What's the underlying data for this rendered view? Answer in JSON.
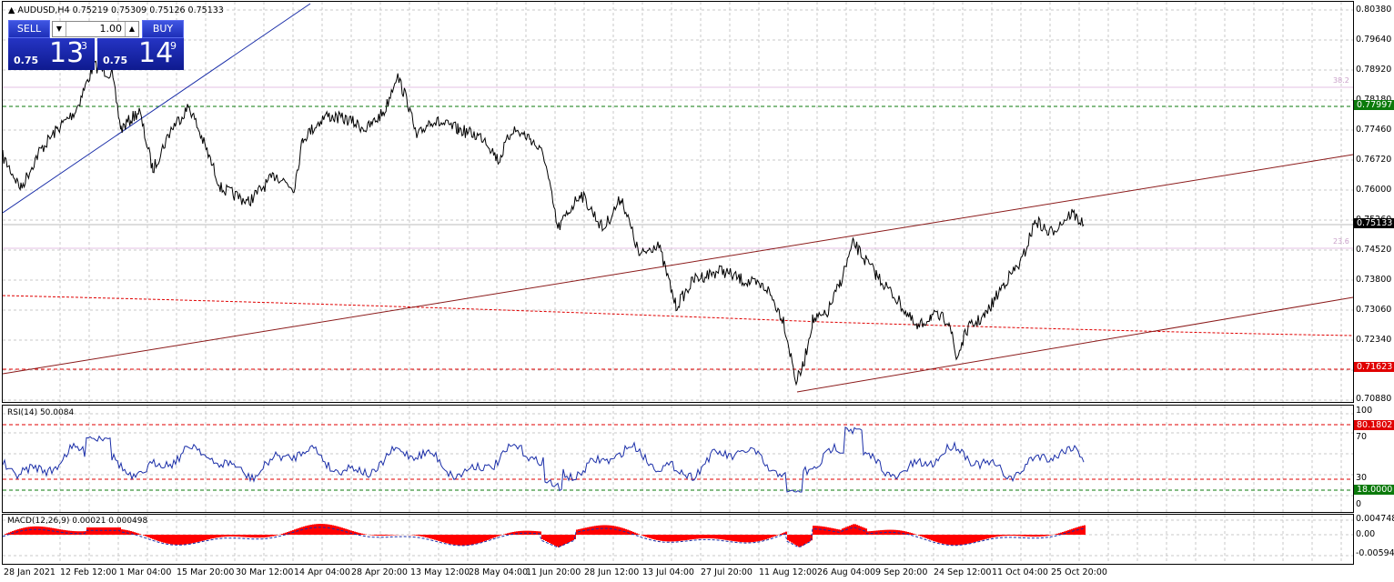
{
  "symbol_header": {
    "arrow": "▲",
    "text": "AUDUSD,H4  0.75219 0.75309 0.75126 0.75133"
  },
  "trade_panel": {
    "sell_label": "SELL",
    "buy_label": "BUY",
    "lot": "1.00",
    "sell_small": "0.75",
    "sell_big": "13",
    "sell_sup": "3",
    "buy_small": "0.75",
    "buy_big": "14",
    "buy_sup": "9"
  },
  "price_scale": [
    "0.80380",
    "0.79640",
    "0.78920",
    "0.78180",
    "0.77460",
    "0.76720",
    "0.76000",
    "0.75260",
    "0.74520",
    "0.73800",
    "0.73060",
    "0.72340",
    "0.71620",
    "0.70880"
  ],
  "fib_labels": {
    "upper": "38.2",
    "lower": "23.6"
  },
  "price_tags": {
    "green_level": "0.77997",
    "current": "0.75133",
    "red_level": "0.71623"
  },
  "rsi": {
    "title": "RSI(14) 50.0084",
    "scale": [
      "100",
      "70",
      "30",
      "0"
    ],
    "upper_tag": "80.1802",
    "lower_tag": "18.0000"
  },
  "macd": {
    "title": "MACD(12,26,9) 0.00021 0.000498",
    "scale": [
      "0.004748",
      "0.00",
      "-0.005945"
    ]
  },
  "x_axis": [
    "28 Jan 2021",
    "12 Feb 12:00",
    "1 Mar 04:00",
    "15 Mar 20:00",
    "30 Mar 12:00",
    "14 Apr 04:00",
    "28 Apr 20:00",
    "13 May 12:00",
    "28 May 04:00",
    "11 Jun 20:00",
    "28 Jun 12:00",
    "13 Jul 04:00",
    "27 Jul 20:00",
    "11 Aug 12:00",
    "26 Aug 04:00",
    "9 Sep 20:00",
    "24 Sep 12:00",
    "11 Oct 04:00",
    "25 Oct 20:00"
  ],
  "colors": {
    "price_line": "#000000",
    "trend_blue": "#1a2ea8",
    "channel": "#8b1a1a",
    "green_dash": "#0b7a0b",
    "red_dash": "#e00000",
    "rsi_line": "#1a2ea8",
    "macd_hist": "#ff0000",
    "grid": "#c8c8c8"
  },
  "chart_data": {
    "type": "line",
    "title": "AUDUSD,H4",
    "ylim": [
      0.7088,
      0.8038
    ],
    "x": [
      "28 Jan 2021",
      "12 Feb 12:00",
      "1 Mar 04:00",
      "15 Mar 20:00",
      "30 Mar 12:00",
      "14 Apr 04:00",
      "28 Apr 20:00",
      "13 May 12:00",
      "28 May 04:00",
      "11 Jun 20:00",
      "28 Jun 12:00",
      "13 Jul 04:00",
      "27 Jul 20:00",
      "11 Aug 12:00",
      "26 Aug 04:00",
      "9 Sep 20:00",
      "24 Sep 12:00",
      "11 Oct 04:00",
      "25 Oct 20:00"
    ],
    "series": [
      {
        "values": [
          0.77,
          0.788,
          0.774,
          0.772,
          0.761,
          0.77,
          0.776,
          0.774,
          0.773,
          0.751,
          0.748,
          0.733,
          0.735,
          0.712,
          0.746,
          0.728,
          0.726,
          0.742,
          0.753
        ]
      }
    ]
  }
}
